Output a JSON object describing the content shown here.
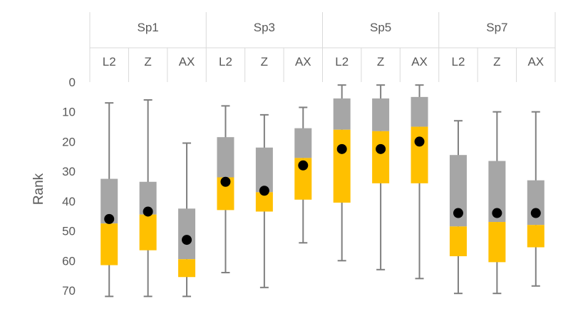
{
  "chart_data": {
    "type": "boxplot",
    "ylabel": "Rank",
    "ylim": [
      0,
      70
    ],
    "y_inverted": true,
    "y_ticks": [
      0,
      10,
      20,
      30,
      40,
      50,
      60,
      70
    ],
    "grid": false,
    "groups": [
      {
        "label": "Sp1",
        "methods": [
          {
            "label": "L2",
            "min": 7,
            "q1": 32.5,
            "median": 47.5,
            "q3": 61.5,
            "max": 72,
            "mean": 46
          },
          {
            "label": "Z",
            "min": 6,
            "q1": 33.5,
            "median": 44.5,
            "q3": 56.5,
            "max": 72,
            "mean": 43.5
          },
          {
            "label": "AX",
            "min": 20.5,
            "q1": 42.5,
            "median": 59.5,
            "q3": 65.5,
            "max": 72,
            "mean": 53
          }
        ]
      },
      {
        "label": "Sp3",
        "methods": [
          {
            "label": "L2",
            "min": 8,
            "q1": 18.5,
            "median": 32,
            "q3": 43,
            "max": 64,
            "mean": 33.5
          },
          {
            "label": "Z",
            "min": 11,
            "q1": 22,
            "median": 37,
            "q3": 43.5,
            "max": 69,
            "mean": 36.5
          },
          {
            "label": "AX",
            "min": 8.5,
            "q1": 15.5,
            "median": 25.5,
            "q3": 39.5,
            "max": 54,
            "mean": 28
          }
        ]
      },
      {
        "label": "Sp5",
        "methods": [
          {
            "label": "L2",
            "min": 1,
            "q1": 5.5,
            "median": 16,
            "q3": 40.5,
            "max": 60,
            "mean": 22.5
          },
          {
            "label": "Z",
            "min": 1,
            "q1": 5.5,
            "median": 16.5,
            "q3": 34,
            "max": 63,
            "mean": 22.5
          },
          {
            "label": "AX",
            "min": 1,
            "q1": 5,
            "median": 15,
            "q3": 34,
            "max": 66,
            "mean": 20
          }
        ]
      },
      {
        "label": "Sp7",
        "methods": [
          {
            "label": "L2",
            "min": 13,
            "q1": 24.5,
            "median": 48.5,
            "q3": 58.5,
            "max": 71,
            "mean": 44
          },
          {
            "label": "Z",
            "min": 10,
            "q1": 26.5,
            "median": 47,
            "q3": 60.5,
            "max": 71,
            "mean": 44
          },
          {
            "label": "AX",
            "min": 10,
            "q1": 33,
            "median": 48,
            "q3": 55.5,
            "max": 68.5,
            "mean": 44
          }
        ]
      }
    ],
    "colors": {
      "upper_box": "#a6a6a6",
      "lower_box": "#ffc000",
      "whisker": "#7f7f7f",
      "mean_marker": "#000000",
      "header_lines": "#d9d9d9",
      "text": "#595959"
    }
  }
}
